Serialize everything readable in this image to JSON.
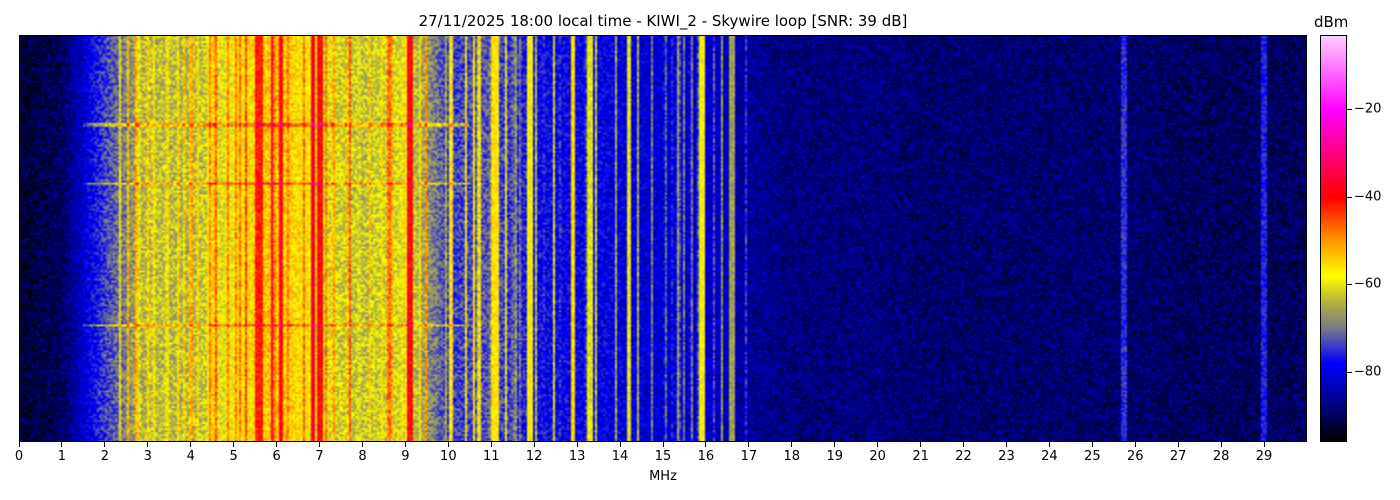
{
  "chart_data": {
    "type": "heatmap",
    "title": "27/11/2025 18:00 local time - KIWI_2 - Skywire loop [SNR: 39 dB]",
    "xlabel": "MHz",
    "ylabel": "",
    "xlim": [
      0,
      30
    ],
    "xticks": [
      "0",
      "1",
      "2",
      "3",
      "4",
      "5",
      "6",
      "7",
      "8",
      "9",
      "10",
      "11",
      "12",
      "13",
      "14",
      "15",
      "16",
      "17",
      "18",
      "19",
      "20",
      "21",
      "22",
      "23",
      "24",
      "25",
      "26",
      "27",
      "28",
      "29"
    ],
    "colorbar": {
      "label": "dBm",
      "range": [
        -96,
        -3
      ],
      "ticks": [
        "−20",
        "−40",
        "−60",
        "−80"
      ],
      "tick_values": [
        -20,
        -40,
        -60,
        -80
      ],
      "colormap": [
        {
          "value": -96,
          "color": "#000000"
        },
        {
          "value": -88,
          "color": "#000080"
        },
        {
          "value": -78,
          "color": "#0000ff"
        },
        {
          "value": -70,
          "color": "#7a7a8a"
        },
        {
          "value": -64,
          "color": "#b4b43c"
        },
        {
          "value": -58,
          "color": "#ffff00"
        },
        {
          "value": -50,
          "color": "#ff9900"
        },
        {
          "value": -40,
          "color": "#ff0000"
        },
        {
          "value": -30,
          "color": "#ff0080"
        },
        {
          "value": -20,
          "color": "#ff00ff"
        },
        {
          "value": -3,
          "color": "#ffccff"
        }
      ]
    },
    "mean_level_dbm_per_mhz": [
      -93,
      -90,
      -74,
      -63,
      -64,
      -58,
      -52,
      -60,
      -63,
      -60,
      -74,
      -72,
      -78,
      -79,
      -80,
      -82,
      -82,
      -86,
      -88,
      -88,
      -88,
      -89,
      -89,
      -89,
      -89,
      -89,
      -89,
      -90,
      -90,
      -90
    ],
    "strong_signals": [
      {
        "mhz": 5.6,
        "dbm": -42
      },
      {
        "mhz": 6.85,
        "dbm": -38
      },
      {
        "mhz": 7.0,
        "dbm": -40
      },
      {
        "mhz": 9.1,
        "dbm": -40
      },
      {
        "mhz": 11.1,
        "dbm": -56
      },
      {
        "mhz": 11.9,
        "dbm": -58
      },
      {
        "mhz": 12.9,
        "dbm": -55
      },
      {
        "mhz": 13.3,
        "dbm": -60
      },
      {
        "mhz": 14.2,
        "dbm": -60
      },
      {
        "mhz": 15.9,
        "dbm": -58
      },
      {
        "mhz": 16.6,
        "dbm": -66
      },
      {
        "mhz": 25.75,
        "dbm": -75
      },
      {
        "mhz": 29.0,
        "dbm": -76
      }
    ]
  }
}
